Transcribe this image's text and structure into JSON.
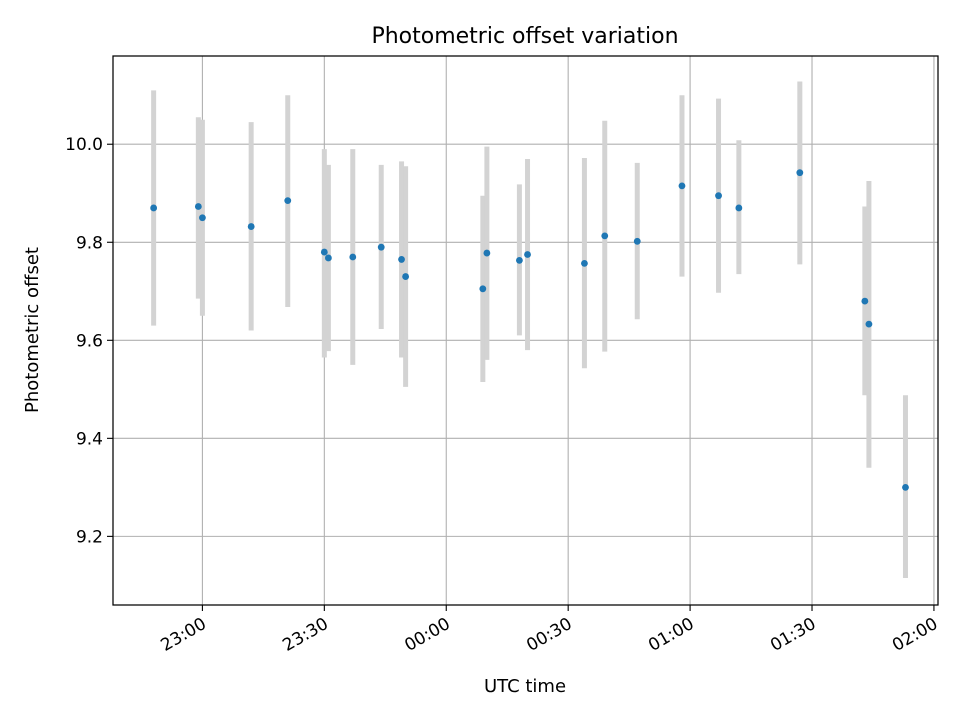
{
  "chart_data": {
    "type": "scatter",
    "title": "Photometric offset variation",
    "xlabel": "UTC time",
    "ylabel": "Photometric offset",
    "grid": true,
    "x_tick_labels": [
      "23:00",
      "23:30",
      "00:00",
      "00:30",
      "01:00",
      "01:30",
      "02:00"
    ],
    "y_tick_labels": [
      "9.2",
      "9.4",
      "9.6",
      "9.8",
      "10.0"
    ],
    "xlim": [
      "22:38",
      "02:01"
    ],
    "ylim": [
      9.06,
      10.18
    ],
    "colors": {
      "point": "#1f77b4",
      "errorbar": "#d3d3d3",
      "grid": "#b0b0b0"
    },
    "points": [
      {
        "x": "22:48",
        "y": 9.87,
        "ylo": 9.63,
        "yhi": 10.11
      },
      {
        "x": "22:59",
        "y": 9.873,
        "ylo": 9.685,
        "yhi": 10.055
      },
      {
        "x": "23:00",
        "y": 9.85,
        "ylo": 9.65,
        "yhi": 10.05
      },
      {
        "x": "23:12",
        "y": 9.832,
        "ylo": 9.62,
        "yhi": 10.045
      },
      {
        "x": "23:21",
        "y": 9.885,
        "ylo": 9.668,
        "yhi": 10.1
      },
      {
        "x": "23:30",
        "y": 9.78,
        "ylo": 9.565,
        "yhi": 9.99
      },
      {
        "x": "23:31",
        "y": 9.768,
        "ylo": 9.578,
        "yhi": 9.958
      },
      {
        "x": "23:37",
        "y": 9.77,
        "ylo": 9.55,
        "yhi": 9.99
      },
      {
        "x": "23:44",
        "y": 9.79,
        "ylo": 9.623,
        "yhi": 9.958
      },
      {
        "x": "23:49",
        "y": 9.765,
        "ylo": 9.565,
        "yhi": 9.965
      },
      {
        "x": "23:50",
        "y": 9.73,
        "ylo": 9.505,
        "yhi": 9.955
      },
      {
        "x": "00:09",
        "y": 9.705,
        "ylo": 9.515,
        "yhi": 9.895
      },
      {
        "x": "00:10",
        "y": 9.778,
        "ylo": 9.56,
        "yhi": 9.995
      },
      {
        "x": "00:18",
        "y": 9.763,
        "ylo": 9.61,
        "yhi": 9.918
      },
      {
        "x": "00:20",
        "y": 9.775,
        "ylo": 9.58,
        "yhi": 9.97
      },
      {
        "x": "00:34",
        "y": 9.757,
        "ylo": 9.543,
        "yhi": 9.972
      },
      {
        "x": "00:39",
        "y": 9.813,
        "ylo": 9.577,
        "yhi": 10.048
      },
      {
        "x": "00:47",
        "y": 9.802,
        "ylo": 9.643,
        "yhi": 9.962
      },
      {
        "x": "00:58",
        "y": 9.915,
        "ylo": 9.73,
        "yhi": 10.1
      },
      {
        "x": "01:07",
        "y": 9.895,
        "ylo": 9.697,
        "yhi": 10.093
      },
      {
        "x": "01:12",
        "y": 9.87,
        "ylo": 9.735,
        "yhi": 10.008
      },
      {
        "x": "01:27",
        "y": 9.942,
        "ylo": 9.755,
        "yhi": 10.128
      },
      {
        "x": "01:43",
        "y": 9.68,
        "ylo": 9.488,
        "yhi": 9.873
      },
      {
        "x": "01:44",
        "y": 9.633,
        "ylo": 9.34,
        "yhi": 9.925
      },
      {
        "x": "01:53",
        "y": 9.3,
        "ylo": 9.115,
        "yhi": 9.488
      }
    ]
  }
}
